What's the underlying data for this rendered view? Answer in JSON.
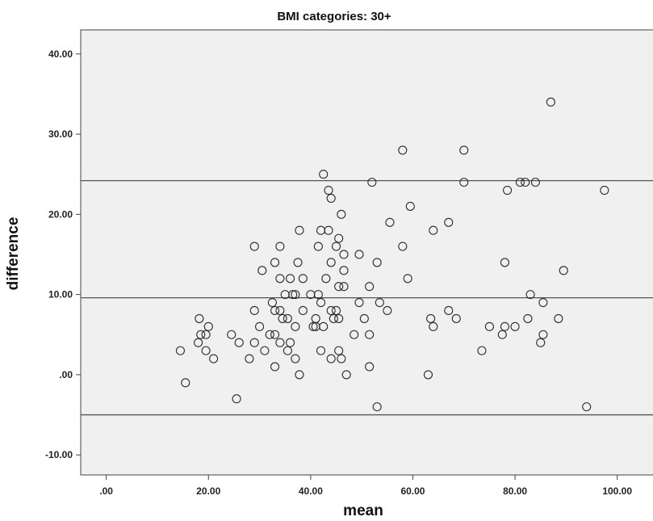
{
  "chart_data": {
    "type": "scatter",
    "title": "BMI categories: 30+",
    "xlabel": "mean",
    "ylabel": "difference",
    "xlim": [
      -5,
      107
    ],
    "ylim": [
      -12.5,
      43
    ],
    "xticks": [
      {
        "value": 0,
        "label": ".00"
      },
      {
        "value": 20,
        "label": "20.00"
      },
      {
        "value": 40,
        "label": "40.00"
      },
      {
        "value": 60,
        "label": "60.00"
      },
      {
        "value": 80,
        "label": "80.00"
      },
      {
        "value": 100,
        "label": "100.00"
      }
    ],
    "yticks": [
      {
        "value": -10,
        "label": "-10.00"
      },
      {
        "value": 0,
        "label": ".00"
      },
      {
        "value": 10,
        "label": "10.00"
      },
      {
        "value": 20,
        "label": "20.00"
      },
      {
        "value": 30,
        "label": "30.00"
      },
      {
        "value": 40,
        "label": "40.00"
      }
    ],
    "reference_lines": [
      24.2,
      9.6,
      -5.0
    ],
    "grid": false,
    "colors": {
      "plot_background": "#f0f0f0",
      "marker_stroke": "#2b2b2b",
      "reference_line": "#555555"
    },
    "points": [
      [
        14.5,
        3
      ],
      [
        15.5,
        -1
      ],
      [
        18,
        4
      ],
      [
        18.2,
        7
      ],
      [
        18.5,
        5
      ],
      [
        19.5,
        5
      ],
      [
        19.5,
        3
      ],
      [
        20,
        6
      ],
      [
        21,
        2
      ],
      [
        24.5,
        5
      ],
      [
        25.5,
        -3
      ],
      [
        26,
        4
      ],
      [
        28,
        2
      ],
      [
        29,
        8
      ],
      [
        29,
        16
      ],
      [
        29,
        4
      ],
      [
        30,
        6
      ],
      [
        30.5,
        13
      ],
      [
        31,
        3
      ],
      [
        32,
        5
      ],
      [
        32.5,
        9
      ],
      [
        33,
        5
      ],
      [
        33,
        1
      ],
      [
        33,
        14
      ],
      [
        33,
        8
      ],
      [
        34,
        16
      ],
      [
        34,
        12
      ],
      [
        34,
        8
      ],
      [
        34,
        4
      ],
      [
        34.5,
        7
      ],
      [
        35,
        10
      ],
      [
        35.5,
        7
      ],
      [
        35.5,
        3
      ],
      [
        36,
        12
      ],
      [
        36,
        4
      ],
      [
        36.5,
        10
      ],
      [
        37,
        10
      ],
      [
        37,
        6
      ],
      [
        37,
        2
      ],
      [
        37.5,
        14
      ],
      [
        37.8,
        18
      ],
      [
        37.8,
        0
      ],
      [
        38.5,
        8
      ],
      [
        38.5,
        12
      ],
      [
        40,
        10
      ],
      [
        40.5,
        6
      ],
      [
        41,
        6
      ],
      [
        41,
        7
      ],
      [
        41.5,
        10
      ],
      [
        41.5,
        16
      ],
      [
        42,
        18
      ],
      [
        42,
        9
      ],
      [
        42,
        3
      ],
      [
        42.5,
        25
      ],
      [
        42.5,
        6
      ],
      [
        43,
        12
      ],
      [
        43.5,
        18
      ],
      [
        43.5,
        23
      ],
      [
        44,
        22
      ],
      [
        44,
        14
      ],
      [
        44,
        8
      ],
      [
        44,
        2
      ],
      [
        44.5,
        7
      ],
      [
        45,
        8
      ],
      [
        45,
        16
      ],
      [
        45.5,
        17
      ],
      [
        45.5,
        3
      ],
      [
        45.5,
        11
      ],
      [
        45.5,
        7
      ],
      [
        46,
        20
      ],
      [
        46,
        2
      ],
      [
        46.5,
        15
      ],
      [
        46.5,
        13
      ],
      [
        46.5,
        11
      ],
      [
        47,
        0
      ],
      [
        48.5,
        5
      ],
      [
        49.5,
        15
      ],
      [
        49.5,
        9
      ],
      [
        50.5,
        7
      ],
      [
        51.5,
        11
      ],
      [
        51.5,
        5
      ],
      [
        51.5,
        1
      ],
      [
        52,
        24
      ],
      [
        53,
        14
      ],
      [
        53,
        -4
      ],
      [
        53.5,
        9
      ],
      [
        55,
        8
      ],
      [
        55.5,
        19
      ],
      [
        58,
        28
      ],
      [
        58,
        16
      ],
      [
        59,
        12
      ],
      [
        59.5,
        21
      ],
      [
        63,
        0
      ],
      [
        63.5,
        7
      ],
      [
        64,
        18
      ],
      [
        64,
        6
      ],
      [
        67,
        19
      ],
      [
        67,
        8
      ],
      [
        68.5,
        7
      ],
      [
        70,
        28
      ],
      [
        70,
        24
      ],
      [
        73.5,
        3
      ],
      [
        75,
        6
      ],
      [
        77.5,
        5
      ],
      [
        78,
        14
      ],
      [
        78,
        6
      ],
      [
        78.5,
        23
      ],
      [
        80,
        6
      ],
      [
        81,
        24
      ],
      [
        82,
        24
      ],
      [
        82.5,
        7
      ],
      [
        83,
        10
      ],
      [
        84,
        24
      ],
      [
        85,
        4
      ],
      [
        85.5,
        5
      ],
      [
        85.5,
        9
      ],
      [
        87,
        34
      ],
      [
        88.5,
        7
      ],
      [
        89.5,
        13
      ],
      [
        94,
        -4
      ],
      [
        97.5,
        23
      ]
    ]
  }
}
